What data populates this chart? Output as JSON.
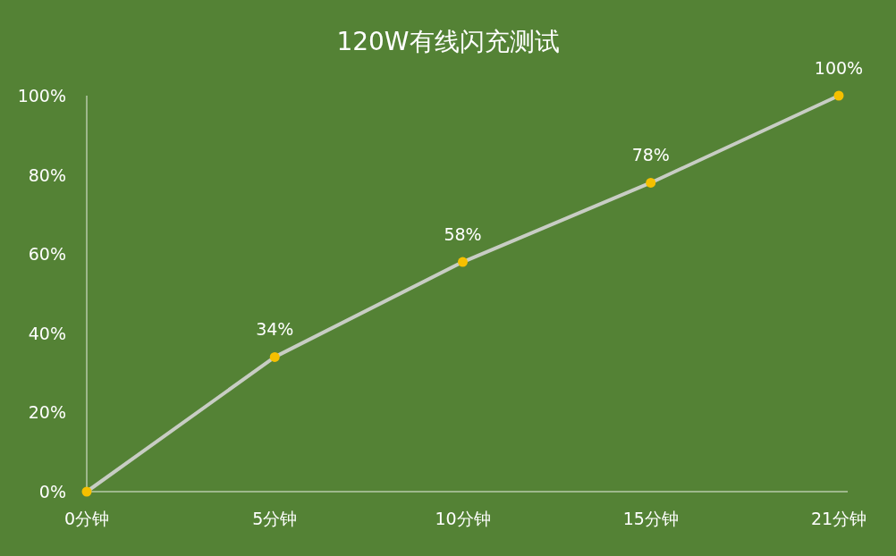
{
  "chart_data": {
    "type": "line",
    "title": "120W有线闪充测试",
    "categories": [
      "0分钟",
      "5分钟",
      "10分钟",
      "15分钟",
      "21分钟"
    ],
    "values": [
      0,
      34,
      58,
      78,
      100
    ],
    "value_labels": [
      null,
      "34%",
      "58%",
      "78%",
      "100%"
    ],
    "color": "#c8cdc4",
    "marker": "circle",
    "line_style": "solid",
    "ylim": [
      0,
      100
    ],
    "yticks": [
      {
        "value": 0,
        "label": "0%"
      },
      {
        "value": 20,
        "label": "20%"
      },
      {
        "value": 40,
        "label": "40%"
      },
      {
        "value": 60,
        "label": "60%"
      },
      {
        "value": 80,
        "label": "80%"
      },
      {
        "value": 100,
        "label": "100%"
      }
    ]
  }
}
